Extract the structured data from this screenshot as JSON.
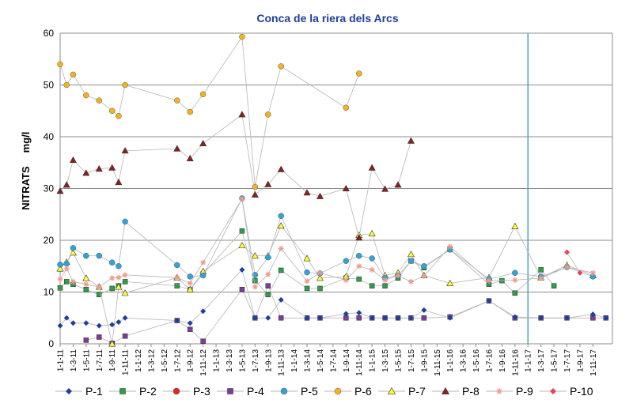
{
  "chart_data": {
    "type": "line",
    "title": "Conca de la riera dels Arcs",
    "ylabel": "NITRATS",
    "yunit": "mg/l",
    "ylim": [
      0,
      60
    ],
    "yticks": [
      0,
      10,
      20,
      30,
      40,
      50,
      60
    ],
    "grid": true,
    "legend_position": "bottom",
    "x_ticks": [
      "1-1-11",
      "1-3-11",
      "1-5-11",
      "1-7-11",
      "1-9-11",
      "1-11-11",
      "1-1-12",
      "1-3-12",
      "1-5-12",
      "1-7-12",
      "1-9-12",
      "1-11-12",
      "1-1-13",
      "1-3-13",
      "1-5-13",
      "1-7-13",
      "1-9-13",
      "1-11-13",
      "1-1-14",
      "1-3-14",
      "1-5-14",
      "1-7-14",
      "1-9-14",
      "1-11-14",
      "1-1-15",
      "1-3-15",
      "1-5-15",
      "1-7-15",
      "1-9-15",
      "1-11-15",
      "1-1-16",
      "1-3-16",
      "1-5-16",
      "1-7-16",
      "1-9-16",
      "1-11-16",
      "1-1-17",
      "1-3-17",
      "1-5-17",
      "1-7-17",
      "1-9-17",
      "1-11-17"
    ],
    "x_range": [
      0,
      42.5
    ],
    "vline_x": 36,
    "series": [
      {
        "name": "P-1",
        "color": "#1f3f99",
        "marker": "diamond",
        "points": [
          [
            0,
            3.5
          ],
          [
            0.5,
            5
          ],
          [
            1,
            4
          ],
          [
            2,
            4
          ],
          [
            3,
            3.5
          ],
          [
            4,
            3.7
          ],
          [
            4.5,
            4.2
          ],
          [
            5,
            5
          ],
          [
            9,
            4.5
          ],
          [
            10,
            4
          ],
          [
            11,
            6.3
          ],
          [
            14,
            14.3
          ],
          [
            15,
            5
          ],
          [
            16,
            5
          ],
          [
            17,
            8.5
          ],
          [
            19,
            5
          ],
          [
            20,
            5
          ],
          [
            22,
            5.8
          ],
          [
            23,
            6
          ],
          [
            24,
            5
          ],
          [
            25,
            5
          ],
          [
            26,
            5
          ],
          [
            27,
            5
          ],
          [
            28,
            6.5
          ],
          [
            30,
            5
          ],
          [
            33,
            8.3
          ],
          [
            35,
            5.2
          ],
          [
            37,
            5
          ],
          [
            39,
            5
          ],
          [
            41,
            5.7
          ],
          [
            42,
            5
          ]
        ]
      },
      {
        "name": "P-2",
        "color": "#2e9e48",
        "marker": "square",
        "points": [
          [
            0,
            10.8
          ],
          [
            0.5,
            12
          ],
          [
            1,
            11.5
          ],
          [
            2,
            10.5
          ],
          [
            3,
            9.5
          ],
          [
            4,
            10.7
          ],
          [
            4.5,
            11.2
          ],
          [
            5,
            12
          ],
          [
            9,
            11.2
          ],
          [
            10,
            10.5
          ],
          [
            11,
            13.5
          ],
          [
            14,
            21.8
          ],
          [
            15,
            12.2
          ],
          [
            16,
            9.5
          ],
          [
            17,
            14.2
          ],
          [
            19,
            10.7
          ],
          [
            20,
            10.7
          ],
          [
            22,
            12.7
          ],
          [
            23,
            12.5
          ],
          [
            24,
            11.2
          ],
          [
            25,
            11.2
          ],
          [
            26,
            12.7
          ],
          [
            27,
            16
          ],
          [
            28,
            14.7
          ],
          [
            30,
            18.2
          ],
          [
            33,
            11.5
          ],
          [
            34,
            12.2
          ],
          [
            35,
            9.8
          ],
          [
            37,
            14.3
          ],
          [
            38,
            11.2
          ]
        ]
      },
      {
        "name": "P-3",
        "color": "#e8231f",
        "marker": "circle",
        "points": []
      },
      {
        "name": "P-4",
        "color": "#7c3c9a",
        "marker": "square",
        "points": [
          [
            2,
            0.7
          ],
          [
            3,
            1.3
          ],
          [
            4,
            0.1
          ],
          [
            5,
            1.5
          ],
          [
            9,
            4.5
          ],
          [
            10,
            2.8
          ],
          [
            11,
            0.5
          ],
          [
            14,
            10.5
          ],
          [
            15,
            5
          ],
          [
            16,
            11.2
          ],
          [
            17,
            5
          ],
          [
            19,
            5
          ],
          [
            20,
            5
          ],
          [
            22,
            5
          ],
          [
            23,
            5
          ],
          [
            24,
            5
          ],
          [
            25,
            5
          ],
          [
            26,
            5
          ],
          [
            27,
            5
          ],
          [
            28,
            5
          ],
          [
            30,
            5.2
          ],
          [
            33,
            8.3
          ],
          [
            35,
            5
          ],
          [
            37,
            5
          ],
          [
            39,
            5
          ],
          [
            41,
            5
          ],
          [
            42,
            5
          ]
        ]
      },
      {
        "name": "P-5",
        "color": "#2fa4d9",
        "marker": "circle",
        "points": [
          [
            0,
            15.3
          ],
          [
            0.5,
            15.5
          ],
          [
            1,
            18.5
          ],
          [
            2,
            17
          ],
          [
            3,
            17
          ],
          [
            4,
            15.7
          ],
          [
            4.5,
            15
          ],
          [
            5,
            23.6
          ],
          [
            9,
            15.2
          ],
          [
            10,
            13
          ],
          [
            11,
            13.2
          ],
          [
            14,
            28.1
          ],
          [
            15,
            13.3
          ],
          [
            16,
            16.7
          ],
          [
            17,
            24.7
          ],
          [
            19,
            13.8
          ],
          [
            20,
            13.6
          ],
          [
            22,
            16
          ],
          [
            23,
            17
          ],
          [
            24,
            16.5
          ],
          [
            25,
            12.7
          ],
          [
            26,
            13.2
          ],
          [
            27,
            16
          ],
          [
            28,
            15
          ],
          [
            30,
            18.2
          ],
          [
            33,
            12.5
          ],
          [
            35,
            13.7
          ],
          [
            37,
            13
          ],
          [
            39,
            14.8
          ],
          [
            41,
            13
          ]
        ]
      },
      {
        "name": "P-6",
        "color": "#f5b21b",
        "marker": "circle",
        "points": [
          [
            0,
            54
          ],
          [
            0.5,
            50
          ],
          [
            1,
            52
          ],
          [
            2,
            48
          ],
          [
            3,
            47
          ],
          [
            4,
            45
          ],
          [
            4.5,
            44
          ],
          [
            5,
            50
          ],
          [
            9,
            47
          ],
          [
            10,
            44.8
          ],
          [
            11,
            48.2
          ],
          [
            14,
            59.3
          ],
          [
            15,
            30.3
          ],
          [
            16,
            44.3
          ],
          [
            17,
            53.6
          ],
          [
            22,
            45.6
          ],
          [
            23,
            52.2
          ]
        ]
      },
      {
        "name": "P-7",
        "color": "#ffff33",
        "marker": "triangle",
        "points": [
          [
            0,
            14.5
          ],
          [
            0.5,
            15.8
          ],
          [
            1,
            17.6
          ],
          [
            2,
            12.7
          ],
          [
            3,
            11
          ],
          [
            4,
            0
          ],
          [
            4.5,
            11
          ],
          [
            5,
            9.8
          ],
          [
            9,
            12.8
          ],
          [
            10,
            10.5
          ],
          [
            11,
            14
          ],
          [
            14,
            19
          ],
          [
            15,
            17
          ],
          [
            16,
            17
          ],
          [
            17,
            22.8
          ],
          [
            19,
            16.5
          ],
          [
            20,
            12.7
          ],
          [
            22,
            13
          ],
          [
            23,
            21
          ],
          [
            24,
            21.3
          ],
          [
            25,
            13.2
          ],
          [
            26,
            13.7
          ],
          [
            27,
            17.3
          ],
          [
            28,
            13.2
          ],
          [
            30,
            11.7
          ],
          [
            33,
            12.8
          ],
          [
            35,
            22.7
          ],
          [
            37,
            12.8
          ],
          [
            39,
            15.2
          ],
          [
            41,
            13.2
          ]
        ]
      },
      {
        "name": "P-8",
        "color": "#8c1f1f",
        "marker": "triangle",
        "points": [
          [
            0,
            29.5
          ],
          [
            0.5,
            30.7
          ],
          [
            1,
            35.5
          ],
          [
            2,
            33
          ],
          [
            3,
            33.8
          ],
          [
            4,
            34
          ],
          [
            4.5,
            31.2
          ],
          [
            5,
            37.3
          ],
          [
            9,
            37.7
          ],
          [
            10,
            35.8
          ],
          [
            11,
            38.7
          ],
          [
            14,
            44.3
          ],
          [
            15,
            28.8
          ],
          [
            16,
            30.8
          ],
          [
            17,
            33.7
          ],
          [
            19,
            29.2
          ],
          [
            20,
            28.5
          ],
          [
            22,
            30
          ],
          [
            23,
            20.5
          ],
          [
            24,
            34
          ],
          [
            25,
            29.9
          ],
          [
            26,
            30.7
          ],
          [
            27,
            39.2
          ]
        ]
      },
      {
        "name": "P-9",
        "color": "#f09a8c",
        "marker": "star",
        "points": [
          [
            0,
            12.5
          ],
          [
            0.5,
            14.5
          ],
          [
            1,
            12
          ],
          [
            2,
            11.5
          ],
          [
            3,
            11
          ],
          [
            4,
            12.7
          ],
          [
            4.5,
            12.8
          ],
          [
            5,
            13.3
          ],
          [
            9,
            12.8
          ],
          [
            10,
            11.7
          ],
          [
            11,
            15.7
          ],
          [
            14,
            28
          ],
          [
            15,
            11
          ],
          [
            16,
            13.4
          ],
          [
            17,
            18.4
          ],
          [
            19,
            12.1
          ],
          [
            20,
            13.7
          ],
          [
            22,
            12.3
          ],
          [
            23,
            15
          ],
          [
            24,
            14.3
          ],
          [
            25,
            12.3
          ],
          [
            26,
            13.2
          ],
          [
            27,
            12
          ],
          [
            28,
            13.1
          ],
          [
            30,
            18.8
          ],
          [
            33,
            12.2
          ],
          [
            35,
            12.3
          ],
          [
            37,
            12.7
          ],
          [
            39,
            14.8
          ],
          [
            41,
            13.7
          ]
        ]
      },
      {
        "name": "P-10",
        "color": "#e5445a",
        "marker": "diamond",
        "points": [
          [
            39,
            17.7
          ],
          [
            40,
            13.7
          ]
        ]
      }
    ]
  }
}
